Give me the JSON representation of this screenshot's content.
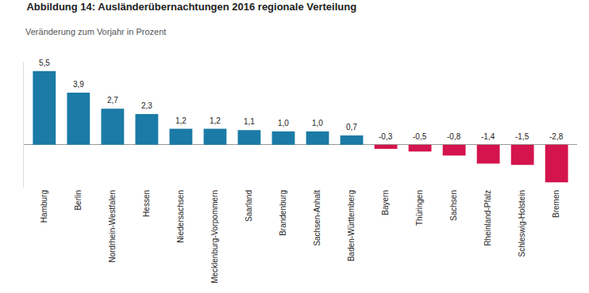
{
  "chart_data": {
    "type": "bar",
    "title": "Abbildung 14: Ausländerübernachtungen 2016 regionale Verteilung",
    "subtitle": "Veränderung zum Vorjahr in Prozent",
    "categories": [
      "Hamburg",
      "Berlin",
      "Nordrhein-Westfalen",
      "Hessen",
      "Niedersachsen",
      "Mecklenburg-Vorpommern",
      "Saarland",
      "Brandenburg",
      "Sachsen-Anhalt",
      "Baden-Württemberg",
      "Bayern",
      "Thüringen",
      "Sachsen",
      "Rheinland-Pfalz",
      "Schleswig-Holstein",
      "Bremen"
    ],
    "values": [
      5.5,
      3.9,
      2.7,
      2.3,
      1.2,
      1.2,
      1.1,
      1.0,
      1.0,
      0.7,
      -0.3,
      -0.5,
      -0.8,
      -1.4,
      -1.5,
      -2.8
    ],
    "value_labels": [
      "5,5",
      "3,9",
      "2,7",
      "2,3",
      "1,2",
      "1,2",
      "1,1",
      "1,0",
      "1,0",
      "0,7",
      "-0,3",
      "-0,5",
      "-0,8",
      "-1,4",
      "-1,5",
      "-2,8"
    ],
    "colors": [
      "#1b7ba6",
      "#1b7ba6",
      "#1b7ba6",
      "#1b7ba6",
      "#1b7ba6",
      "#1b7ba6",
      "#1b7ba6",
      "#1b7ba6",
      "#1b7ba6",
      "#1b7ba6",
      "#d4144c",
      "#d4144c",
      "#d4144c",
      "#d4144c",
      "#d4144c",
      "#d4144c"
    ],
    "ylim": [
      -3.2,
      6.2
    ],
    "grid": false,
    "data_labels": true,
    "tick_labels": "x"
  }
}
